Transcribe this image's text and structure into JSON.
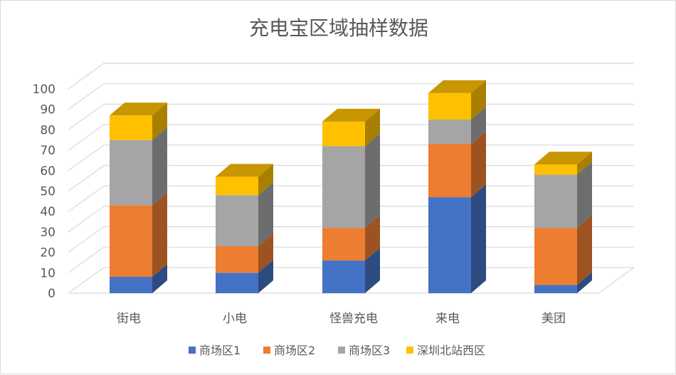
{
  "chart_data": {
    "type": "bar",
    "stacked": true,
    "three_d": true,
    "title": "充电宝区域抽样数据",
    "xlabel": "",
    "ylabel": "",
    "ylim": [
      0,
      100
    ],
    "ytick_step": 10,
    "yticks": [
      "0",
      "10",
      "20",
      "30",
      "40",
      "50",
      "60",
      "70",
      "80",
      "90",
      "100"
    ],
    "grid": true,
    "legend_position": "bottom",
    "categories": [
      "街电",
      "小电",
      "怪兽充电",
      "来电",
      "美团"
    ],
    "series": [
      {
        "name": "商场区1",
        "values": [
          8,
          10,
          16,
          47,
          4
        ],
        "color": "#4472c4"
      },
      {
        "name": "商场区2",
        "values": [
          35,
          13,
          16,
          26,
          28
        ],
        "color": "#ed7d31"
      },
      {
        "name": "商场区3",
        "values": [
          32,
          25,
          40,
          12,
          26
        ],
        "color": "#a5a5a5"
      },
      {
        "name": "深圳北站西区",
        "values": [
          12,
          9,
          12,
          13,
          5
        ],
        "color": "#ffc000"
      }
    ]
  }
}
